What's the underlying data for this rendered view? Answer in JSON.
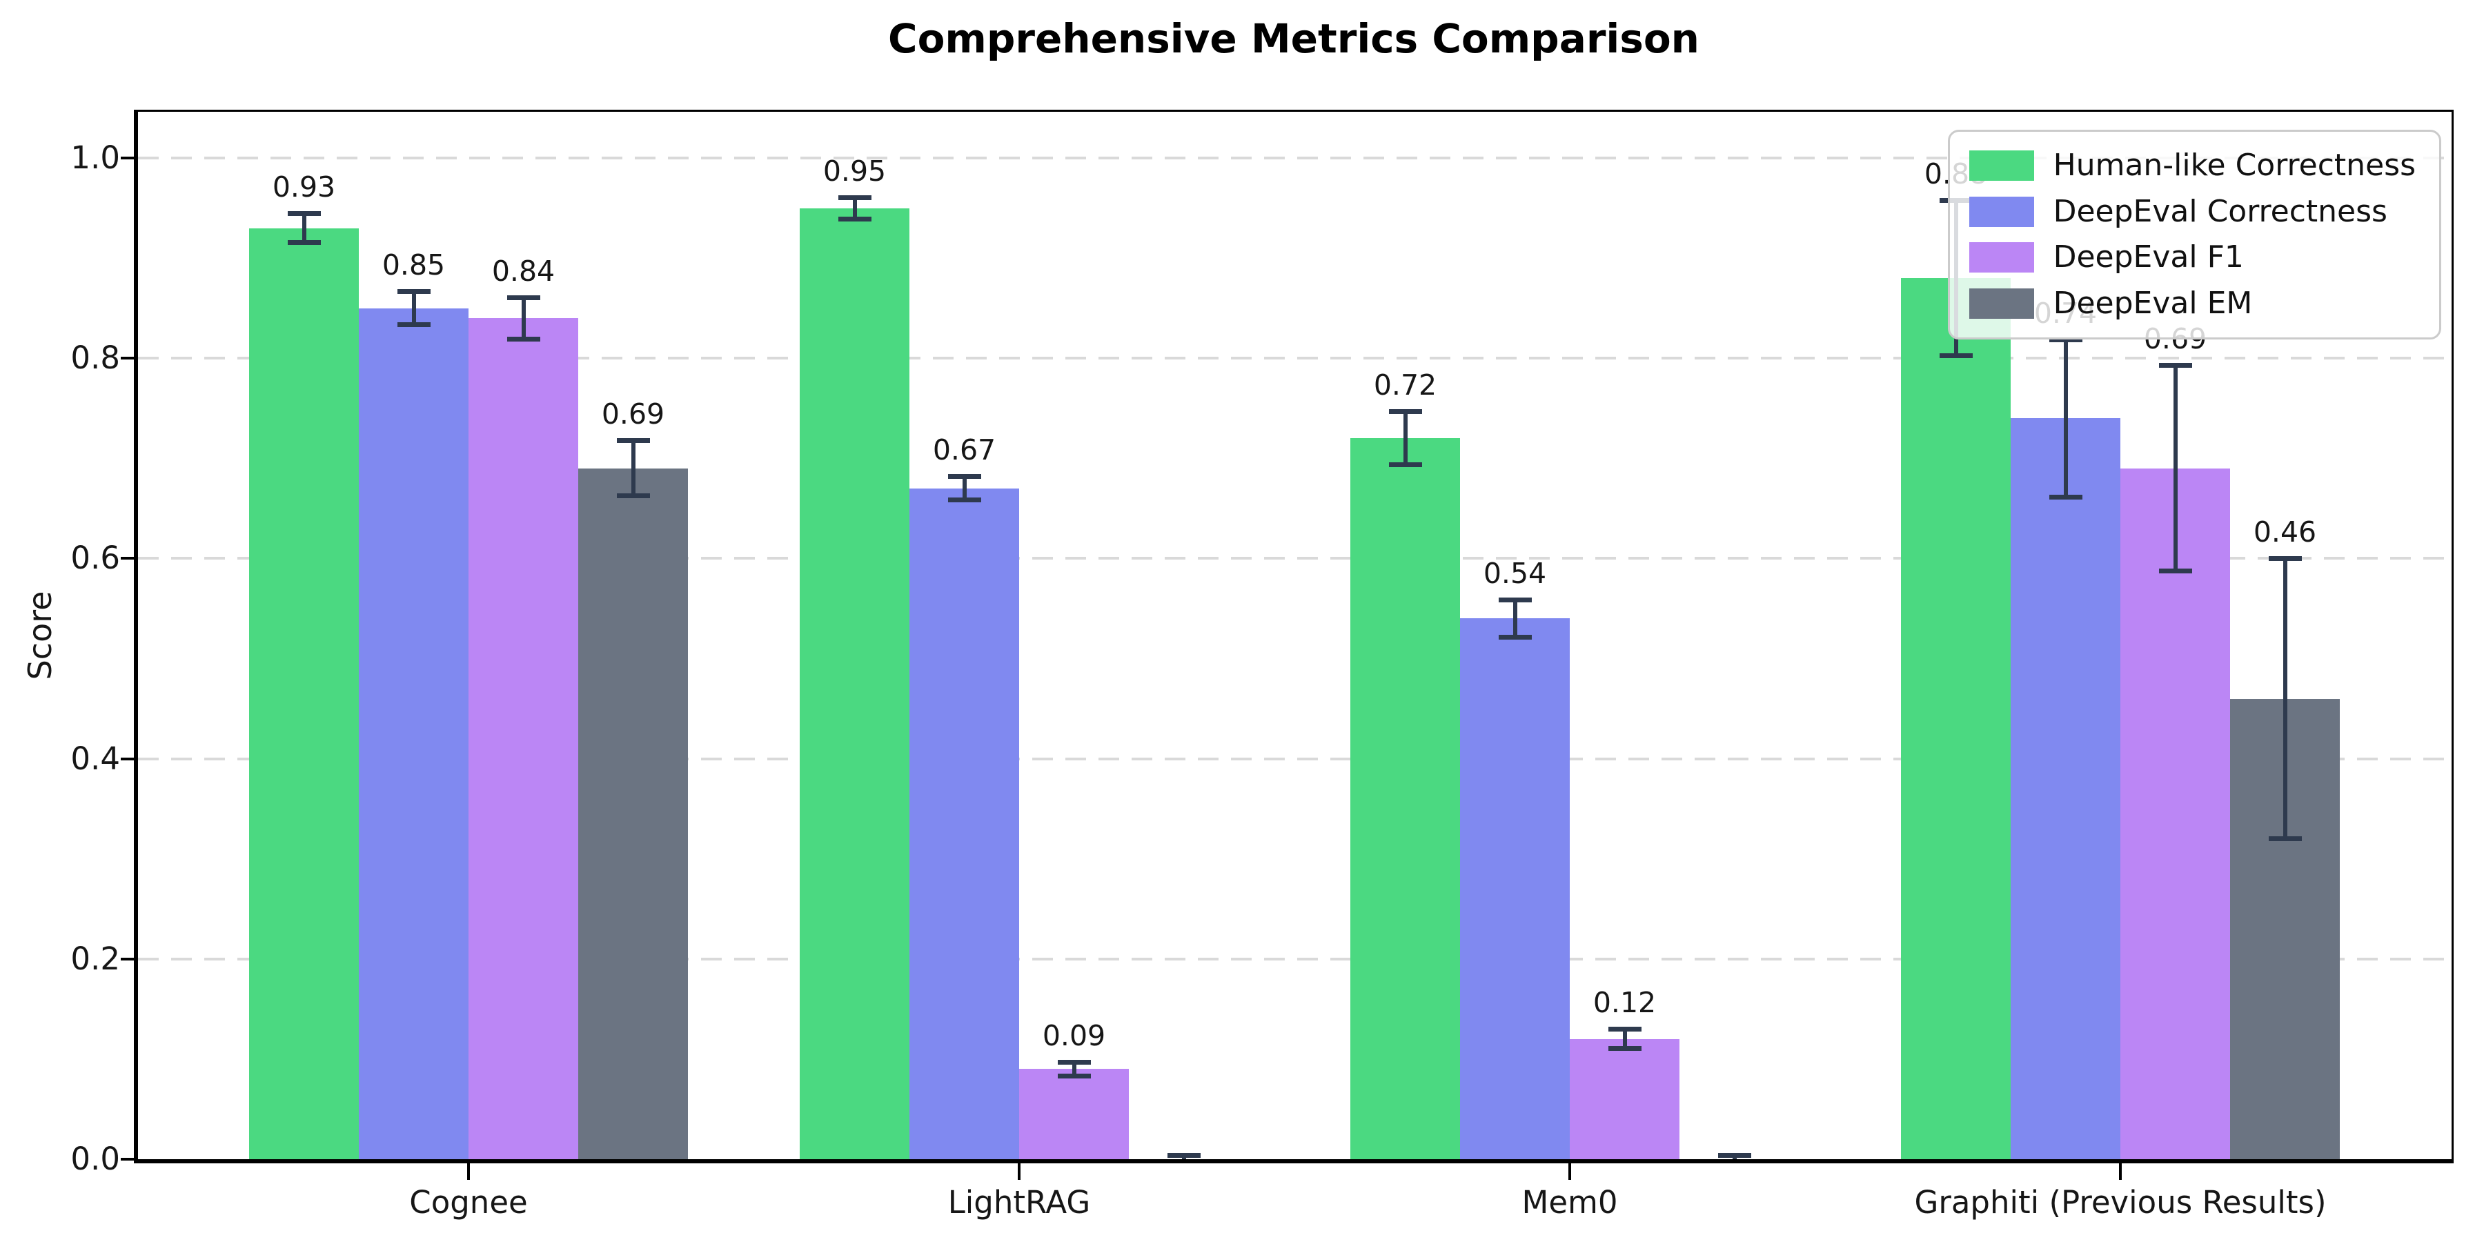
{
  "chart_data": {
    "type": "bar",
    "title": "Comprehensive Metrics Comparison",
    "xlabel": "",
    "ylabel": "Score",
    "categories": [
      "Cognee",
      "LightRAG",
      "Mem0",
      "Graphiti (Previous Results)"
    ],
    "series": [
      {
        "name": "Human-like Correctness",
        "color": "#4bd981",
        "values": [
          0.93,
          0.95,
          0.72,
          0.88
        ],
        "labels": [
          "0.93",
          "0.95",
          "0.72",
          "0.88"
        ],
        "errors": [
          0.015,
          0.011,
          0.027,
          0.078
        ]
      },
      {
        "name": "DeepEval Correctness",
        "color": "#8089f0",
        "values": [
          0.85,
          0.67,
          0.54,
          0.74
        ],
        "labels": [
          "0.85",
          "0.67",
          "0.54",
          "0.74"
        ],
        "errors": [
          0.017,
          0.012,
          0.019,
          0.079
        ]
      },
      {
        "name": "DeepEval F1",
        "color": "#bb86f5",
        "values": [
          0.84,
          0.09,
          0.12,
          0.69
        ],
        "labels": [
          "0.84",
          "0.09",
          "0.12",
          "0.69"
        ],
        "errors": [
          0.021,
          0.007,
          0.01,
          0.103
        ]
      },
      {
        "name": "DeepEval EM",
        "color": "#6b7482",
        "values": [
          0.69,
          0.0,
          0.0,
          0.46
        ],
        "labels": [
          "0.69",
          "",
          "",
          "0.46"
        ],
        "errors": [
          0.028,
          0.004,
          0.004,
          0.14
        ]
      }
    ],
    "ylim": [
      0.0,
      1.047
    ],
    "yticks": [
      0.0,
      0.2,
      0.4,
      0.6,
      0.8,
      1.0
    ],
    "ytick_labels": [
      "0.0",
      "0.2",
      "0.4",
      "0.6",
      "0.8",
      "1.0"
    ],
    "grid": "horizontal-dashed",
    "legend_position": "upper right",
    "error_bar_color": "#2e3a4e"
  }
}
